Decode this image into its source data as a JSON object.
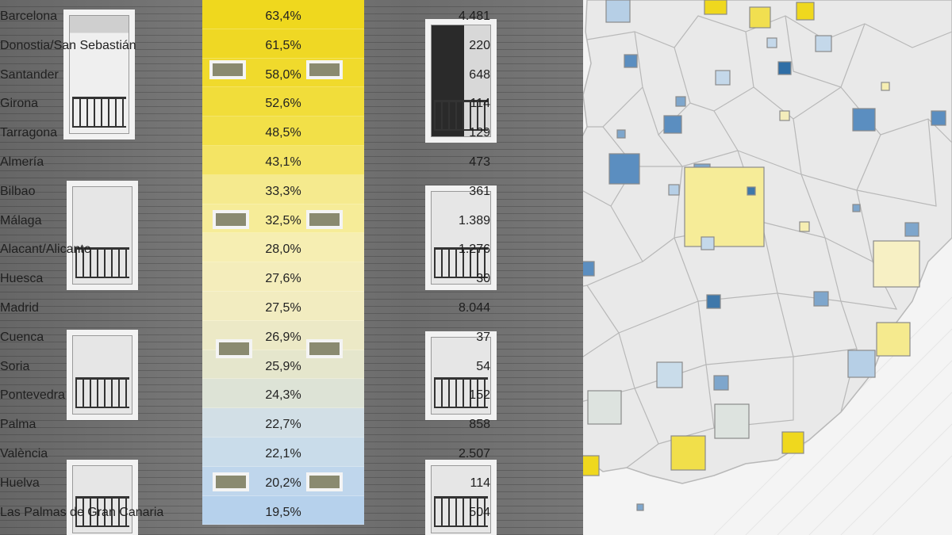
{
  "rows": [
    {
      "city": "Barcelona",
      "pct": "63,4%",
      "count": "4.481",
      "color": "#efd81e"
    },
    {
      "city": "Donostia/San Sebastián",
      "pct": "61,5%",
      "count": "220",
      "color": "#efd824"
    },
    {
      "city": "Santander",
      "pct": "58,0%",
      "count": "648",
      "color": "#f0da2c"
    },
    {
      "city": "Girona",
      "pct": "52,6%",
      "count": "114",
      "color": "#f1dd3a"
    },
    {
      "city": "Tarragona",
      "pct": "48,5%",
      "count": "129",
      "color": "#f2e048"
    },
    {
      "city": "Almería",
      "pct": "43,1%",
      "count": "473",
      "color": "#f4e464"
    },
    {
      "city": "Bilbao",
      "pct": "33,3%",
      "count": "361",
      "color": "#f5ea8e"
    },
    {
      "city": "Málaga",
      "pct": "32,5%",
      "count": "1.389",
      "color": "#f6ec98"
    },
    {
      "city": "Alacant/Alicante",
      "pct": "28,0%",
      "count": "1.276",
      "color": "#f6eeb2"
    },
    {
      "city": "Huesca",
      "pct": "27,6%",
      "count": "30",
      "color": "#f4edbb"
    },
    {
      "city": "Madrid",
      "pct": "27,5%",
      "count": "8.044",
      "color": "#f2ecc0"
    },
    {
      "city": "Cuenca",
      "pct": "26,9%",
      "count": "37",
      "color": "#ece9c6"
    },
    {
      "city": "Soria",
      "pct": "25,9%",
      "count": "54",
      "color": "#e5e6cc"
    },
    {
      "city": "Pontevedra",
      "pct": "24,3%",
      "count": "152",
      "color": "#dde3d6"
    },
    {
      "city": "Palma",
      "pct": "22,7%",
      "count": "858",
      "color": "#d2dfe6"
    },
    {
      "city": "València",
      "pct": "22,1%",
      "count": "2.507",
      "color": "#c9dcea"
    },
    {
      "city": "Huelva",
      "pct": "20,2%",
      "count": "114",
      "color": "#bfd6ec"
    },
    {
      "city": "Las Palmas de Gran Canaria",
      "pct": "19,5%",
      "count": "504",
      "color": "#b6d1ec"
    }
  ],
  "colors": {
    "yellow_high": "#efd81e",
    "yellow_mid": "#f5ea8e",
    "yellow_light": "#f6eeb2",
    "neutral": "#dde3d6",
    "blue_light": "#c4d8ea",
    "blue_mid": "#7ea6cc",
    "blue_dark": "#3f78aa",
    "map_land": "#e8e8e8",
    "map_border": "#b4b4b4"
  }
}
